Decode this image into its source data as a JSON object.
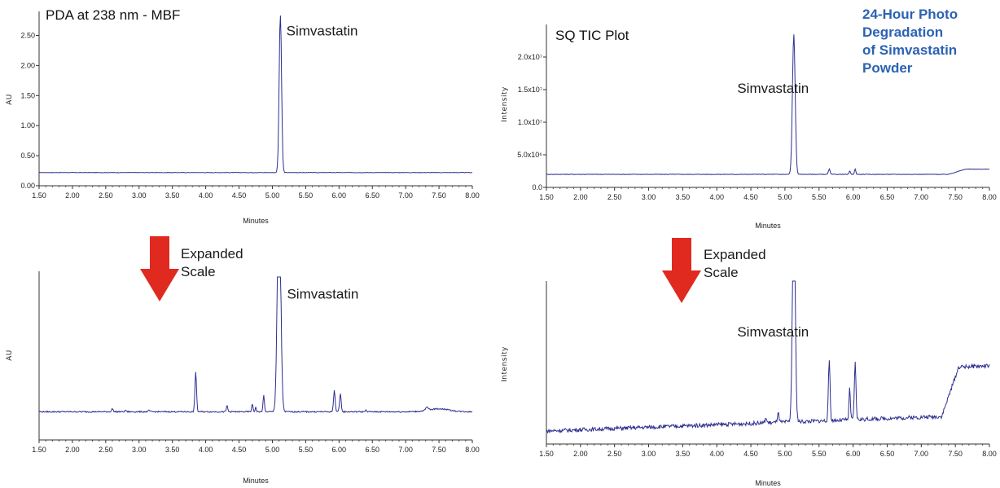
{
  "heading_lines": [
    "24-Hour Photo",
    "Degradation",
    "of Simvastatin",
    "Powder"
  ],
  "expanded_label": [
    "Expanded",
    "Scale"
  ],
  "colors": {
    "trace": "#2c2f8f",
    "arrow": "#e02a20",
    "heading": "#2b62b4"
  },
  "chart_data": [
    {
      "id": "pda_full",
      "type": "line",
      "title": "PDA at 238 nm - MBF",
      "xlabel": "Minutes",
      "ylabel": "AU",
      "xlim": [
        1.5,
        8.0
      ],
      "ylim": [
        0.0,
        2.9
      ],
      "x_ticks": [
        "1.50",
        "2.00",
        "2.50",
        "3.00",
        "3.50",
        "4.00",
        "4.50",
        "5.00",
        "5.50",
        "6.00",
        "6.50",
        "7.00",
        "7.50",
        "8.00"
      ],
      "y_ticks": [
        {
          "v": 0.0,
          "label": "0.00"
        },
        {
          "v": 0.5,
          "label": "0.50"
        },
        {
          "v": 1.0,
          "label": "1.00"
        },
        {
          "v": 1.5,
          "label": "1.50"
        },
        {
          "v": 2.0,
          "label": "2.00"
        },
        {
          "v": 2.5,
          "label": "2.50"
        }
      ],
      "baseline": 0.22,
      "peaks": [
        {
          "x": 5.12,
          "h": 2.62,
          "w": 0.018
        }
      ],
      "annotations": [
        {
          "text": "Simvastatin",
          "x": 5.21,
          "y": 2.5
        }
      ]
    },
    {
      "id": "tic_full",
      "type": "line",
      "title": "SQ TIC Plot",
      "xlabel": "Minutes",
      "ylabel": "Intensity",
      "xlim": [
        1.5,
        8.0
      ],
      "ylim": [
        0.0,
        25000000
      ],
      "x_ticks": [
        "1.50",
        "2.00",
        "2.50",
        "3.00",
        "3.50",
        "4.00",
        "4.50",
        "5.00",
        "5.50",
        "6.00",
        "6.50",
        "7.00",
        "7.50",
        "8.00"
      ],
      "y_ticks": [
        {
          "v": 0,
          "label": "0.0"
        },
        {
          "v": 5000000,
          "label": "5.0x10⁶"
        },
        {
          "v": 10000000,
          "label": "1.0x10⁷"
        },
        {
          "v": 15000000,
          "label": "1.5x10⁷"
        },
        {
          "v": 20000000,
          "label": "2.0x10⁷"
        }
      ],
      "baseline": 2000000,
      "peaks": [
        {
          "x": 5.13,
          "h": 21500000,
          "w": 0.02
        },
        {
          "x": 5.65,
          "h": 800000,
          "w": 0.012
        },
        {
          "x": 5.95,
          "h": 500000,
          "w": 0.01
        },
        {
          "x": 6.03,
          "h": 800000,
          "w": 0.01
        }
      ],
      "drift": [
        {
          "from": 7.4,
          "to": 8.0,
          "rise": 800000
        }
      ],
      "annotations": [
        {
          "text": "Simvastatin",
          "x": 4.3,
          "y": 14500000
        }
      ]
    },
    {
      "id": "pda_expanded",
      "type": "line",
      "xlabel": "Minutes",
      "ylabel": "AU",
      "xlim": [
        1.5,
        8.0
      ],
      "ylim": [
        0.0,
        1.0
      ],
      "x_ticks": [
        "1.50",
        "2.00",
        "2.50",
        "3.00",
        "3.50",
        "4.00",
        "4.50",
        "5.00",
        "5.50",
        "6.00",
        "6.50",
        "7.00",
        "7.50",
        "8.00"
      ],
      "baseline": 0.12,
      "peaks": [
        {
          "x": 2.6,
          "h": 0.02,
          "w": 0.012
        },
        {
          "x": 2.8,
          "h": 0.01,
          "w": 0.01
        },
        {
          "x": 3.15,
          "h": 0.01,
          "w": 0.01
        },
        {
          "x": 3.85,
          "h": 0.26,
          "w": 0.012
        },
        {
          "x": 4.32,
          "h": 0.04,
          "w": 0.01
        },
        {
          "x": 4.7,
          "h": 0.05,
          "w": 0.01
        },
        {
          "x": 4.75,
          "h": 0.03,
          "w": 0.008
        },
        {
          "x": 4.87,
          "h": 0.11,
          "w": 0.01
        },
        {
          "x": 5.1,
          "h": 1.5,
          "w": 0.025
        },
        {
          "x": 5.93,
          "h": 0.14,
          "w": 0.012
        },
        {
          "x": 6.02,
          "h": 0.12,
          "w": 0.012
        },
        {
          "x": 6.4,
          "h": 0.01,
          "w": 0.01
        },
        {
          "x": 7.32,
          "h": 0.02,
          "w": 0.02
        }
      ],
      "bumps": [
        {
          "x": 7.5,
          "h": 0.02,
          "w": 0.15
        }
      ],
      "annotations": [
        {
          "text": "Simvastatin",
          "x": 5.22,
          "y": 0.86
        }
      ]
    },
    {
      "id": "tic_expanded",
      "type": "line",
      "xlabel": "Minutes",
      "ylabel": "Intensity",
      "xlim": [
        1.5,
        8.0
      ],
      "ylim": [
        0.0,
        1.0
      ],
      "x_ticks": [
        "1.50",
        "2.00",
        "2.50",
        "3.00",
        "3.50",
        "4.00",
        "4.50",
        "5.00",
        "5.50",
        "6.00",
        "6.50",
        "7.00",
        "7.50",
        "8.00"
      ],
      "baseline_line": [
        0.08,
        0.18
      ],
      "peaks": [
        {
          "x": 4.72,
          "h": 0.03,
          "w": 0.012
        },
        {
          "x": 4.9,
          "h": 0.06,
          "w": 0.012
        },
        {
          "x": 5.13,
          "h": 1.4,
          "w": 0.02
        },
        {
          "x": 5.65,
          "h": 0.37,
          "w": 0.012
        },
        {
          "x": 5.95,
          "h": 0.2,
          "w": 0.01
        },
        {
          "x": 6.03,
          "h": 0.35,
          "w": 0.012
        }
      ],
      "drift": [
        {
          "from": 7.3,
          "to": 8.0,
          "rise": 0.3
        }
      ],
      "annotations": [
        {
          "text": "Simvastatin",
          "x": 4.3,
          "y": 0.66
        }
      ]
    }
  ]
}
